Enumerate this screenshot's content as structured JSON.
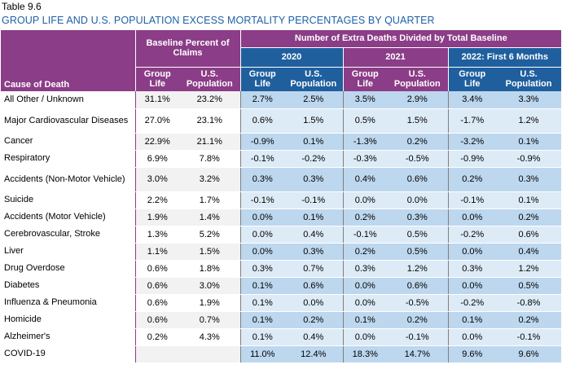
{
  "table_number": "Table 9.6",
  "title": "GROUP LIFE AND U.S. POPULATION EXCESS MORTALITY PERCENTAGES BY QUARTER",
  "header": {
    "cause_label": "Cause of Death",
    "baseline_group": "Baseline Percent of Claims",
    "extra_group": "Number of Extra Deaths Divided by Total Baseline",
    "periods": [
      "2020",
      "2021",
      "2022: First 6 Months"
    ],
    "col_group_life": "Group Life",
    "col_us_population": "U.S. Population"
  },
  "colors": {
    "title_blue": "#1f5fa6",
    "header_purple": "#8b3d87",
    "header_blue": "#1f5f9e",
    "band_dark_blue": "#bdd7ee",
    "band_light_blue": "#ddebf7",
    "band_gray": "#f2f2f2"
  },
  "rows": [
    {
      "cause": "All Other / Unknown",
      "values": [
        "31.1%",
        "23.2%",
        "2.7%",
        "2.5%",
        "3.5%",
        "2.9%",
        "3.4%",
        "3.3%"
      ]
    },
    {
      "cause": "Major Cardiovascular Diseases",
      "values": [
        "27.0%",
        "23.1%",
        "0.6%",
        "1.5%",
        "0.5%",
        "1.5%",
        "-1.7%",
        "1.2%"
      ]
    },
    {
      "cause": "Cancer",
      "values": [
        "22.9%",
        "21.1%",
        "-0.9%",
        "0.1%",
        "-1.3%",
        "0.2%",
        "-3.2%",
        "0.1%"
      ]
    },
    {
      "cause": "Respiratory",
      "values": [
        "6.9%",
        "7.8%",
        "-0.1%",
        "-0.2%",
        "-0.3%",
        "-0.5%",
        "-0.9%",
        "-0.9%"
      ]
    },
    {
      "cause": "Accidents (Non-Motor Vehicle)",
      "values": [
        "3.0%",
        "3.2%",
        "0.3%",
        "0.3%",
        "0.4%",
        "0.6%",
        "0.2%",
        "0.3%"
      ]
    },
    {
      "cause": "Suicide",
      "values": [
        "2.2%",
        "1.7%",
        "-0.1%",
        "-0.1%",
        "0.0%",
        "0.0%",
        "-0.1%",
        "0.1%"
      ]
    },
    {
      "cause": "Accidents (Motor Vehicle)",
      "values": [
        "1.9%",
        "1.4%",
        "0.0%",
        "0.1%",
        "0.2%",
        "0.3%",
        "0.0%",
        "0.2%"
      ]
    },
    {
      "cause": "Cerebrovascular, Stroke",
      "values": [
        "1.3%",
        "5.2%",
        "0.0%",
        "0.4%",
        "-0.1%",
        "0.5%",
        "-0.2%",
        "0.6%"
      ]
    },
    {
      "cause": "Liver",
      "values": [
        "1.1%",
        "1.5%",
        "0.0%",
        "0.3%",
        "0.2%",
        "0.5%",
        "0.0%",
        "0.4%"
      ]
    },
    {
      "cause": "Drug Overdose",
      "values": [
        "0.6%",
        "1.8%",
        "0.3%",
        "0.7%",
        "0.3%",
        "1.2%",
        "0.3%",
        "1.2%"
      ]
    },
    {
      "cause": "Diabetes",
      "values": [
        "0.6%",
        "3.0%",
        "0.1%",
        "0.6%",
        "0.0%",
        "0.6%",
        "0.0%",
        "0.5%"
      ]
    },
    {
      "cause": "Influenza & Pneumonia",
      "values": [
        "0.6%",
        "1.9%",
        "0.1%",
        "0.0%",
        "0.0%",
        "-0.5%",
        "-0.2%",
        "-0.8%"
      ]
    },
    {
      "cause": "Homicide",
      "values": [
        "0.6%",
        "0.7%",
        "0.1%",
        "0.2%",
        "0.1%",
        "0.2%",
        "0.1%",
        "0.2%"
      ]
    },
    {
      "cause": "Alzheimer's",
      "values": [
        "0.2%",
        "4.3%",
        "0.1%",
        "0.4%",
        "0.0%",
        "-0.1%",
        "0.0%",
        "-0.1%"
      ]
    },
    {
      "cause": "COVID-19",
      "values": [
        "",
        "",
        "11.0%",
        "12.4%",
        "18.3%",
        "14.7%",
        "9.6%",
        "9.6%"
      ]
    }
  ]
}
